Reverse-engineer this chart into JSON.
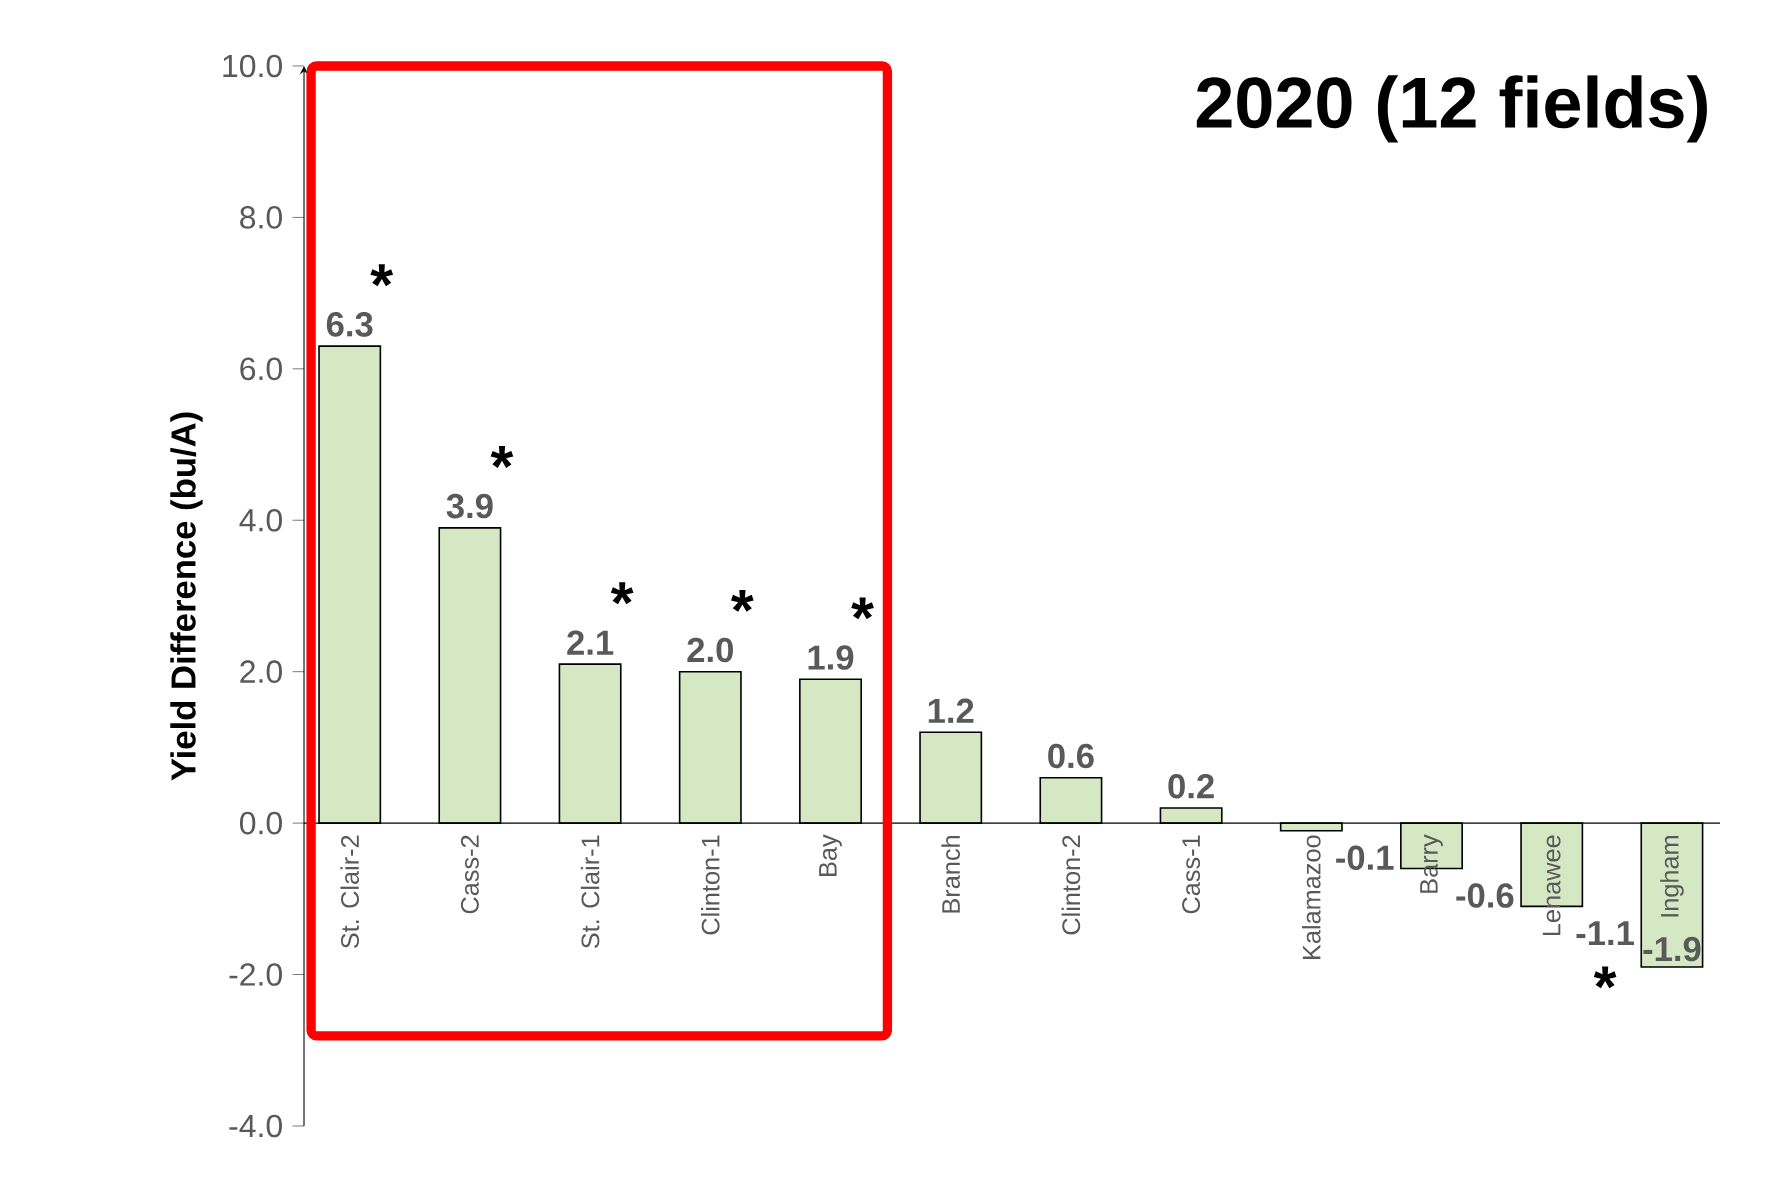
{
  "chart_data": {
    "type": "bar",
    "title": "2020 (12 fields)",
    "ylabel": "Yield Difference (bu/A)",
    "categories": [
      "St. Clair-2",
      "Cass-2",
      "St. Clair-1",
      "Clinton-1",
      "Bay",
      "Branch",
      "Clinton-2",
      "Cass-1",
      "Kalamazoo",
      "Barry",
      "Lenawee",
      "Ingham"
    ],
    "values": [
      6.3,
      3.9,
      2.1,
      2.0,
      1.9,
      1.2,
      0.6,
      0.2,
      -0.1,
      -0.6,
      -1.1,
      -1.9
    ],
    "value_labels": [
      "6.3",
      "3.9",
      "2.1",
      "2.0",
      "1.9",
      "1.2",
      "0.6",
      "0.2",
      "-0.1",
      "-0.6",
      "-1.1",
      "-1.9"
    ],
    "color": "#d5e8c4",
    "ylim": [
      -4,
      10
    ],
    "yticks": [
      {
        "value": -4,
        "label": "-4.0"
      },
      {
        "value": -2,
        "label": "-2.0"
      },
      {
        "value": 0,
        "label": "0.0"
      },
      {
        "value": 2,
        "label": "2.0"
      },
      {
        "value": 4,
        "label": "4.0"
      },
      {
        "value": 6,
        "label": "6.0"
      },
      {
        "value": 8,
        "label": "8.0"
      },
      {
        "value": 10,
        "label": "10.0"
      }
    ],
    "grid": false,
    "annotations": [
      {
        "text": "*",
        "x": "St. Clair-2",
        "y": 6.3
      },
      {
        "text": "*",
        "x": "Cass-2",
        "y": 3.9
      },
      {
        "text": "*",
        "x": "St. Clair-1",
        "y": 2.1
      },
      {
        "text": "*",
        "x": "Clinton-1",
        "y": 2.0
      },
      {
        "text": "*",
        "x": "Bay",
        "y": 1.9
      },
      {
        "text": "*",
        "x": "Lenawee",
        "y": -1.1
      }
    ]
  }
}
